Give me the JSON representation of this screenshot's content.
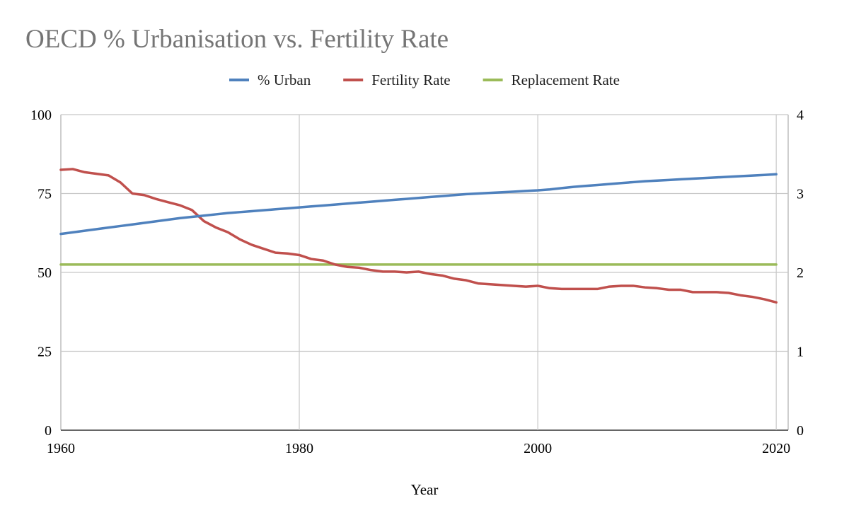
{
  "chart_data": {
    "type": "line",
    "title": "OECD % Urbanisation vs. Fertility Rate",
    "xlabel": "Year",
    "ylabel": "",
    "y2label": "",
    "xlim": [
      1960,
      2021
    ],
    "ylim": [
      0,
      100
    ],
    "y2lim": [
      0,
      4
    ],
    "x_ticks": [
      "1960",
      "1980",
      "2000",
      "2020"
    ],
    "y_ticks": [
      "0",
      "25",
      "50",
      "75",
      "100"
    ],
    "y2_ticks": [
      "0",
      "1",
      "2",
      "3",
      "4"
    ],
    "grid": true,
    "legend_position": "top-center",
    "x": [
      1960,
      1961,
      1962,
      1963,
      1964,
      1965,
      1966,
      1967,
      1968,
      1969,
      1970,
      1971,
      1972,
      1973,
      1974,
      1975,
      1976,
      1977,
      1978,
      1979,
      1980,
      1981,
      1982,
      1983,
      1984,
      1985,
      1986,
      1987,
      1988,
      1989,
      1990,
      1991,
      1992,
      1993,
      1994,
      1995,
      1996,
      1997,
      1998,
      1999,
      2000,
      2001,
      2002,
      2003,
      2004,
      2005,
      2006,
      2007,
      2008,
      2009,
      2010,
      2011,
      2012,
      2013,
      2014,
      2015,
      2016,
      2017,
      2018,
      2019,
      2020
    ],
    "series": [
      {
        "name": "% Urban",
        "axis": "left",
        "color": "#4f81bd",
        "values": [
          62.2,
          62.7,
          63.2,
          63.7,
          64.2,
          64.7,
          65.2,
          65.7,
          66.2,
          66.7,
          67.2,
          67.6,
          68.0,
          68.4,
          68.8,
          69.1,
          69.4,
          69.7,
          70.0,
          70.3,
          70.6,
          70.9,
          71.2,
          71.5,
          71.8,
          72.1,
          72.4,
          72.7,
          73.0,
          73.3,
          73.6,
          73.9,
          74.2,
          74.5,
          74.8,
          75.0,
          75.2,
          75.4,
          75.6,
          75.8,
          76.0,
          76.3,
          76.7,
          77.1,
          77.4,
          77.7,
          78.0,
          78.3,
          78.6,
          78.9,
          79.1,
          79.3,
          79.5,
          79.7,
          79.9,
          80.1,
          80.3,
          80.5,
          80.7,
          80.9,
          81.1
        ]
      },
      {
        "name": "Fertility Rate",
        "axis": "right",
        "color": "#c0504d",
        "values": [
          3.3,
          3.31,
          3.27,
          3.25,
          3.23,
          3.14,
          3.0,
          2.98,
          2.93,
          2.89,
          2.85,
          2.79,
          2.65,
          2.57,
          2.51,
          2.42,
          2.35,
          2.3,
          2.25,
          2.24,
          2.22,
          2.17,
          2.15,
          2.1,
          2.07,
          2.06,
          2.03,
          2.01,
          2.01,
          2.0,
          2.01,
          1.98,
          1.96,
          1.92,
          1.9,
          1.86,
          1.85,
          1.84,
          1.83,
          1.82,
          1.83,
          1.8,
          1.79,
          1.79,
          1.79,
          1.79,
          1.82,
          1.83,
          1.83,
          1.81,
          1.8,
          1.78,
          1.78,
          1.75,
          1.75,
          1.75,
          1.74,
          1.71,
          1.69,
          1.66,
          1.62
        ]
      },
      {
        "name": "Replacement Rate",
        "axis": "right",
        "color": "#9bbb59",
        "values": [
          2.1,
          2.1,
          2.1,
          2.1,
          2.1,
          2.1,
          2.1,
          2.1,
          2.1,
          2.1,
          2.1,
          2.1,
          2.1,
          2.1,
          2.1,
          2.1,
          2.1,
          2.1,
          2.1,
          2.1,
          2.1,
          2.1,
          2.1,
          2.1,
          2.1,
          2.1,
          2.1,
          2.1,
          2.1,
          2.1,
          2.1,
          2.1,
          2.1,
          2.1,
          2.1,
          2.1,
          2.1,
          2.1,
          2.1,
          2.1,
          2.1,
          2.1,
          2.1,
          2.1,
          2.1,
          2.1,
          2.1,
          2.1,
          2.1,
          2.1,
          2.1,
          2.1,
          2.1,
          2.1,
          2.1,
          2.1,
          2.1,
          2.1,
          2.1,
          2.1,
          2.1
        ]
      }
    ]
  }
}
